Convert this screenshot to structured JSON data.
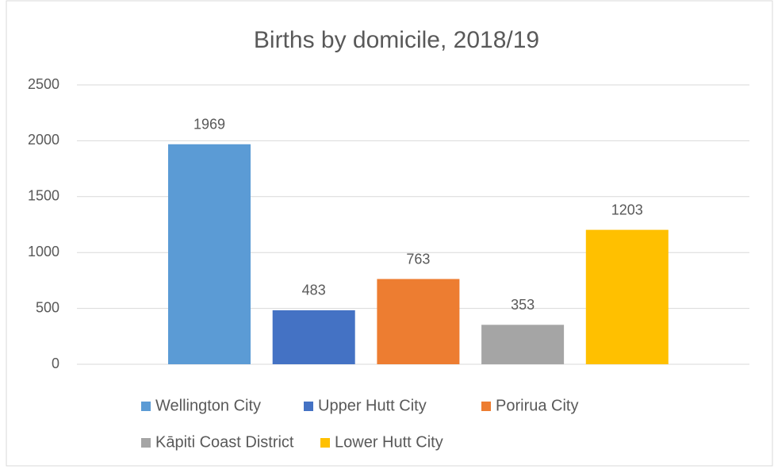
{
  "chart_data": {
    "type": "bar",
    "title": "Births by domicile, 2018/19",
    "series": [
      {
        "name": "Wellington City",
        "color": "#5b9bd5",
        "values": [
          1969
        ]
      },
      {
        "name": "Upper Hutt City",
        "color": "#4472c4",
        "values": [
          483
        ]
      },
      {
        "name": "Porirua City",
        "color": "#ed7d31",
        "values": [
          763
        ]
      },
      {
        "name": "Kāpiti Coast District",
        "color": "#a5a5a5",
        "values": [
          353
        ]
      },
      {
        "name": "Lower Hutt City",
        "color": "#ffc000",
        "values": [
          1203
        ]
      }
    ],
    "ylim": [
      0,
      2500
    ],
    "yticks": [
      0,
      500,
      1000,
      1500,
      2000,
      2500
    ],
    "grid": true,
    "legend": "bottom"
  }
}
